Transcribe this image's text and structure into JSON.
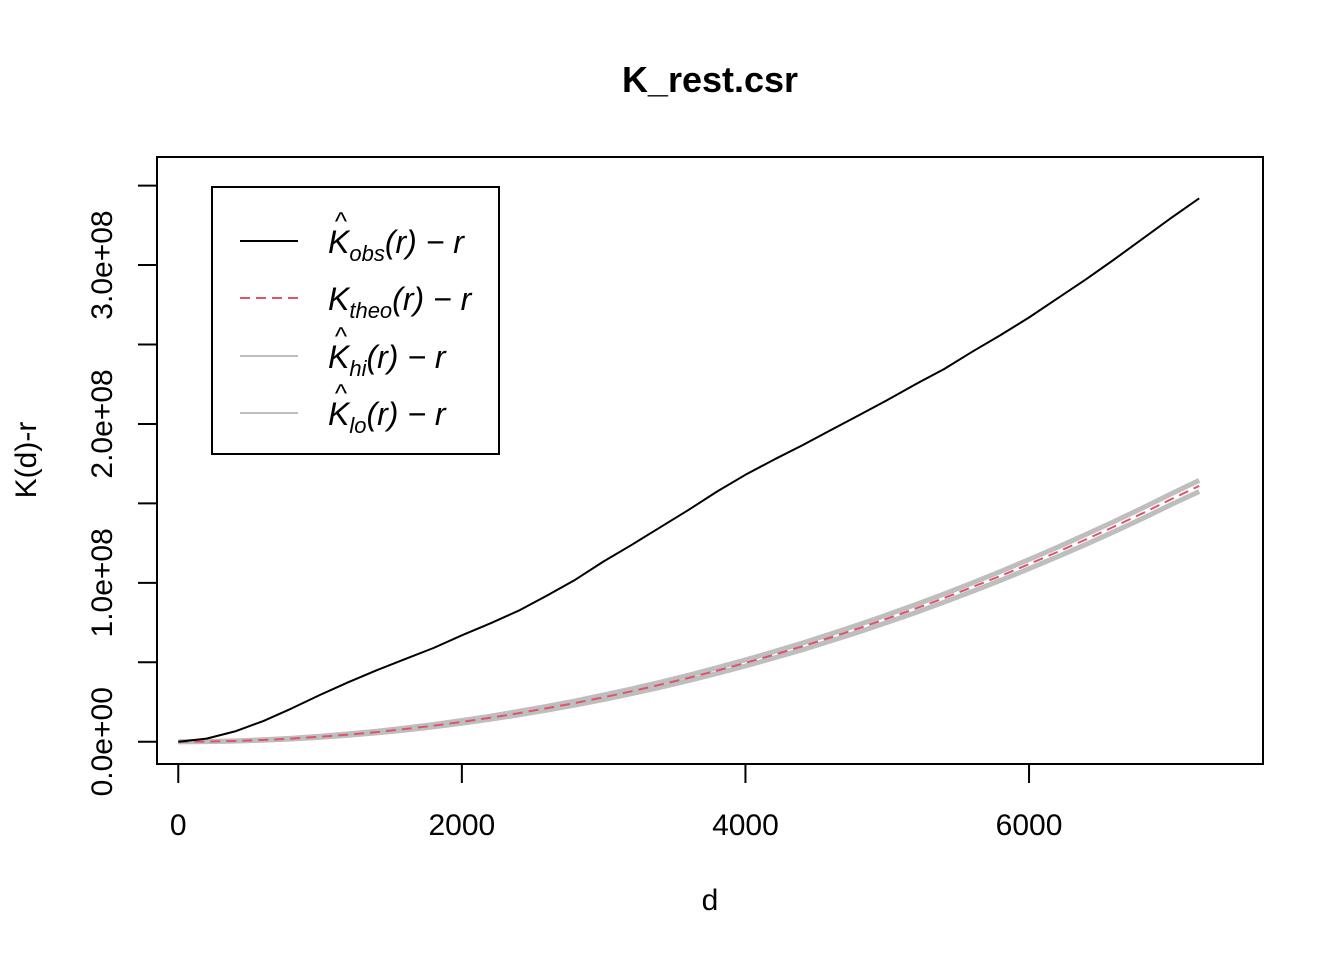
{
  "chart_data": {
    "type": "line",
    "title": "K_rest.csr",
    "xlabel": "d",
    "ylabel": "K(d)-r",
    "xlim": [
      -150,
      7650
    ],
    "ylim": [
      -14000000,
      368000000
    ],
    "x_ticks": [
      0,
      2000,
      4000,
      6000
    ],
    "x_tick_labels": [
      "0",
      "2000",
      "4000",
      "6000"
    ],
    "y_ticks": [
      0,
      50000000,
      100000000,
      150000000,
      200000000,
      250000000,
      300000000,
      350000000
    ],
    "y_tick_labels": [
      "0.0e+00",
      "",
      "1.0e+08",
      "",
      "2.0e+08",
      "",
      "3.0e+08",
      ""
    ],
    "grid": false,
    "legend_position": "top-left",
    "x": [
      0,
      200,
      400,
      600,
      800,
      1000,
      1200,
      1400,
      1600,
      1800,
      2000,
      2200,
      2400,
      2600,
      2800,
      3000,
      3200,
      3400,
      3600,
      3800,
      4000,
      4200,
      4400,
      4600,
      4800,
      5000,
      5200,
      5400,
      5600,
      5800,
      6000,
      6200,
      6400,
      6600,
      6800,
      7000,
      7200
    ],
    "series": [
      {
        "name": "K̂obs(r) − r",
        "legend_main": "K",
        "legend_hat": true,
        "legend_sub": "obs",
        "legend_rest": "(r) − r",
        "color": "#000000",
        "dash": "solid",
        "width": 2,
        "values": [
          0,
          2000000,
          6500000,
          13000000,
          21000000,
          29500000,
          37500000,
          45000000,
          52000000,
          59000000,
          67000000,
          74500000,
          82500000,
          92000000,
          102000000,
          113500000,
          124000000,
          135000000,
          146000000,
          157500000,
          168000000,
          177500000,
          186500000,
          196000000,
          205500000,
          215000000,
          225000000,
          234500000,
          245500000,
          256000000,
          267000000,
          279000000,
          291000000,
          303500000,
          316500000,
          329500000,
          342000000
        ]
      },
      {
        "name": "Ktheo(r) − r",
        "legend_main": "K",
        "legend_hat": false,
        "legend_sub": "theo",
        "legend_rest": "(r) − r",
        "color": "#DF536B",
        "dash": "dashed",
        "width": 2,
        "values": [
          0,
          120000,
          480000,
          1100000,
          2000000,
          3100000,
          4500000,
          6100000,
          8000000,
          10100000,
          12500000,
          15100000,
          18000000,
          21100000,
          24400000,
          28000000,
          31800000,
          35900000,
          40200000,
          44800000,
          49600000,
          54700000,
          60000000,
          65600000,
          71400000,
          77500000,
          83800000,
          90400000,
          97300000,
          104400000,
          111800000,
          119400000,
          127300000,
          135400000,
          143800000,
          152500000,
          161000000
        ]
      },
      {
        "name": "K̂hi(r) − r",
        "legend_main": "K",
        "legend_hat": true,
        "legend_sub": "hi",
        "legend_rest": "(r) − r",
        "color": "#BEBEBE",
        "dash": "solid",
        "width": 2,
        "values": [
          0,
          150000,
          560000,
          1250000,
          2250000,
          3450000,
          4950000,
          6650000,
          8650000,
          10850000,
          13400000,
          16100000,
          19100000,
          22300000,
          25700000,
          29400000,
          33300000,
          37500000,
          41900000,
          46600000,
          51500000,
          56700000,
          62100000,
          67800000,
          73700000,
          79900000,
          86300000,
          93000000,
          100000000,
          107200000,
          114700000,
          122400000,
          130400000,
          138600000,
          147100000,
          155900000,
          164500000
        ]
      },
      {
        "name": "K̂lo(r) − r",
        "legend_main": "K",
        "legend_hat": true,
        "legend_sub": "lo",
        "legend_rest": "(r) − r",
        "color": "#BEBEBE",
        "dash": "solid",
        "width": 2,
        "values": [
          0,
          90000,
          400000,
          950000,
          1750000,
          2750000,
          4050000,
          5550000,
          7350000,
          9350000,
          11600000,
          14100000,
          16900000,
          19900000,
          23100000,
          26600000,
          30300000,
          34300000,
          38500000,
          43000000,
          47700000,
          52700000,
          57900000,
          63400000,
          69100000,
          75100000,
          81300000,
          87800000,
          94600000,
          101600000,
          108900000,
          116400000,
          124200000,
          132200000,
          140500000,
          149100000,
          157500000
        ]
      }
    ]
  }
}
